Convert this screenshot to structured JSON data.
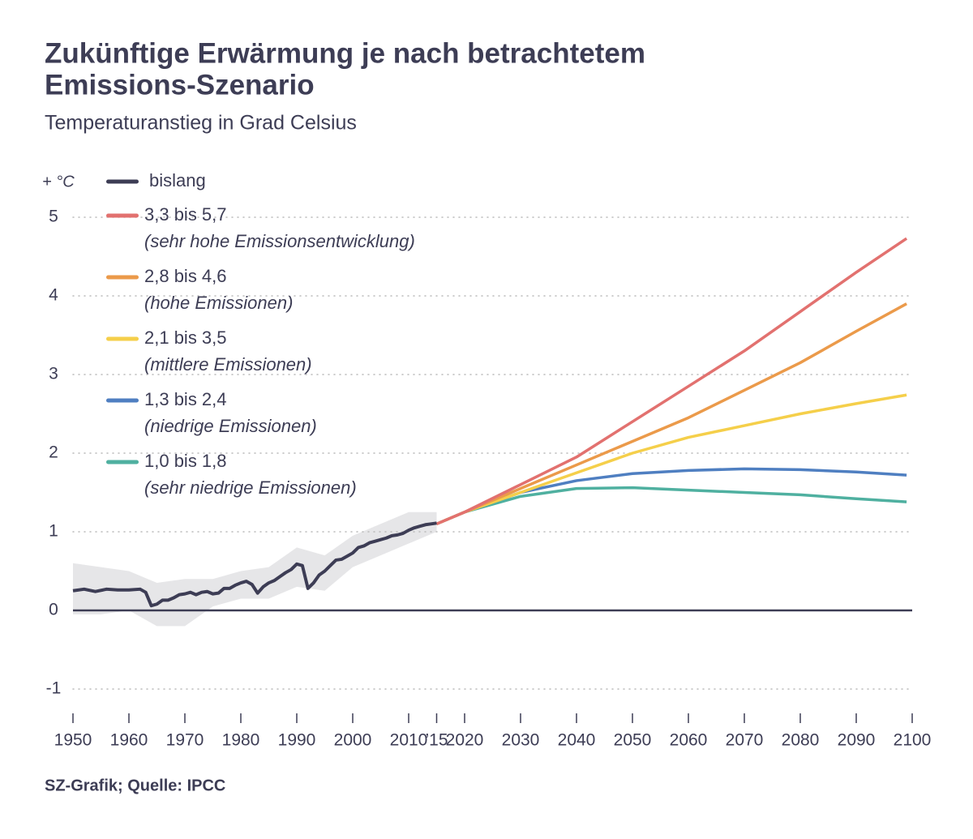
{
  "chart_data": {
    "type": "line",
    "title": [
      "Zukünftige Erwärmung je nach betrachtetem",
      "Emissions-Szenario"
    ],
    "subtitle": "Temperaturanstieg in Grad Celsius",
    "y_unit": "+ °C",
    "source": "SZ-Grafik; Quelle: IPCC",
    "xlim": [
      1950,
      2100
    ],
    "ylim": [
      -1.3,
      5.2
    ],
    "xticks": [
      1950,
      1960,
      1970,
      1980,
      1990,
      2000,
      2010,
      {
        "value": 2015,
        "label": "’15"
      },
      2020,
      2030,
      2040,
      2050,
      2060,
      2070,
      2080,
      2090,
      2100
    ],
    "yticks": [
      -1,
      0,
      1,
      2,
      3,
      4,
      5
    ],
    "grid": true,
    "band": {
      "color": "#e6e6e8",
      "x": [
        1950,
        1955,
        1960,
        1965,
        1970,
        1975,
        1980,
        1985,
        1990,
        1995,
        2000,
        2005,
        2010,
        2015
      ],
      "upper": [
        0.6,
        0.55,
        0.5,
        0.35,
        0.4,
        0.4,
        0.5,
        0.55,
        0.8,
        0.7,
        0.95,
        1.1,
        1.25,
        1.25
      ],
      "lower": [
        -0.05,
        -0.05,
        0.0,
        -0.2,
        -0.2,
        0.05,
        0.15,
        0.15,
        0.3,
        0.25,
        0.55,
        0.7,
        0.85,
        1.0
      ]
    },
    "series": [
      {
        "name": "bislang",
        "color": "#3d3d55",
        "x": [
          1950,
          1952,
          1954,
          1956,
          1958,
          1960,
          1962,
          1963,
          1964,
          1965,
          1966,
          1967,
          1968,
          1969,
          1970,
          1971,
          1972,
          1973,
          1974,
          1975,
          1976,
          1977,
          1978,
          1979,
          1980,
          1981,
          1982,
          1983,
          1984,
          1985,
          1986,
          1987,
          1988,
          1989,
          1990,
          1991,
          1992,
          1993,
          1994,
          1995,
          1996,
          1997,
          1998,
          1999,
          2000,
          2001,
          2002,
          2003,
          2004,
          2005,
          2006,
          2007,
          2008,
          2009,
          2010,
          2011,
          2012,
          2013,
          2014,
          2015
        ],
        "values": [
          0.25,
          0.27,
          0.24,
          0.27,
          0.26,
          0.26,
          0.27,
          0.23,
          0.06,
          0.08,
          0.13,
          0.13,
          0.16,
          0.2,
          0.21,
          0.23,
          0.2,
          0.23,
          0.24,
          0.21,
          0.22,
          0.28,
          0.28,
          0.32,
          0.35,
          0.37,
          0.33,
          0.22,
          0.3,
          0.35,
          0.38,
          0.43,
          0.48,
          0.52,
          0.59,
          0.57,
          0.28,
          0.35,
          0.45,
          0.5,
          0.57,
          0.64,
          0.65,
          0.69,
          0.73,
          0.8,
          0.82,
          0.86,
          0.88,
          0.9,
          0.92,
          0.95,
          0.96,
          0.98,
          1.02,
          1.05,
          1.07,
          1.09,
          1.1,
          1.11
        ]
      },
      {
        "name": "3,3 bis 5,7",
        "description": "(sehr hohe Emissionsentwicklung)",
        "color": "#e2716f",
        "x": [
          2015,
          2020,
          2030,
          2040,
          2050,
          2060,
          2070,
          2080,
          2090,
          2099
        ],
        "values": [
          1.1,
          1.25,
          1.6,
          1.95,
          2.4,
          2.85,
          3.3,
          3.8,
          4.3,
          4.73
        ]
      },
      {
        "name": "2,8 bis 4,6",
        "description": "(hohe Emissionen)",
        "color": "#eb9a4a",
        "x": [
          2015,
          2020,
          2030,
          2040,
          2050,
          2060,
          2070,
          2080,
          2090,
          2099
        ],
        "values": [
          1.1,
          1.25,
          1.55,
          1.85,
          2.15,
          2.45,
          2.8,
          3.15,
          3.55,
          3.9
        ]
      },
      {
        "name": "2,1 bis 3,5",
        "description": "(mittlere Emissionen)",
        "color": "#f5cf4a",
        "x": [
          2015,
          2020,
          2030,
          2040,
          2050,
          2060,
          2070,
          2080,
          2090,
          2099
        ],
        "values": [
          1.1,
          1.25,
          1.5,
          1.75,
          2.0,
          2.2,
          2.35,
          2.5,
          2.63,
          2.74
        ]
      },
      {
        "name": "1,3 bis 2,4",
        "description": "(niedrige Emissionen)",
        "color": "#4f7fc1",
        "x": [
          2015,
          2020,
          2030,
          2040,
          2050,
          2060,
          2070,
          2080,
          2090,
          2099
        ],
        "values": [
          1.1,
          1.25,
          1.5,
          1.65,
          1.74,
          1.78,
          1.8,
          1.79,
          1.76,
          1.72
        ]
      },
      {
        "name": "1,0 bis 1,8",
        "description": "(sehr niedrige Emissionen)",
        "color": "#4fb0a0",
        "x": [
          2015,
          2020,
          2030,
          2040,
          2050,
          2060,
          2070,
          2080,
          2090,
          2099
        ],
        "values": [
          1.1,
          1.25,
          1.45,
          1.55,
          1.56,
          1.53,
          1.5,
          1.47,
          1.42,
          1.38
        ]
      }
    ]
  }
}
